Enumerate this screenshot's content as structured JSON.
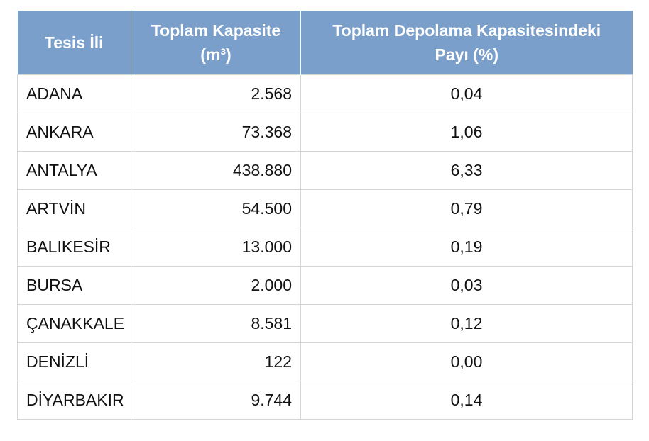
{
  "chart_data": {
    "type": "table",
    "columns": [
      "Tesis İli",
      "Toplam Kapasite (m³)",
      "Toplam Depolama Kapasitesindeki Payı (%)"
    ],
    "header": {
      "col1": "Tesis İli",
      "col2_line1": "Toplam Kapasite",
      "col2_line2": "(m³)",
      "col3_line1": "Toplam Depolama Kapasitesindeki",
      "col3_line2": "Payı (%)"
    },
    "rows": [
      {
        "city": "ADANA",
        "capacity": "2.568",
        "share": "0,04"
      },
      {
        "city": "ANKARA",
        "capacity": "73.368",
        "share": "1,06"
      },
      {
        "city": "ANTALYA",
        "capacity": "438.880",
        "share": "6,33"
      },
      {
        "city": "ARTVİN",
        "capacity": "54.500",
        "share": "0,79"
      },
      {
        "city": "BALIKESİR",
        "capacity": "13.000",
        "share": "0,19"
      },
      {
        "city": "BURSA",
        "capacity": "2.000",
        "share": "0,03"
      },
      {
        "city": "ÇANAKKALE",
        "capacity": "8.581",
        "share": "0,12"
      },
      {
        "city": "DENİZLİ",
        "capacity": "122",
        "share": "0,00"
      },
      {
        "city": "DİYARBAKIR",
        "capacity": "9.744",
        "share": "0,14"
      }
    ]
  },
  "colors": {
    "header_background": "#7b9fcb",
    "header_text": "#ffffff",
    "grid_line": "#d4d4d4"
  }
}
